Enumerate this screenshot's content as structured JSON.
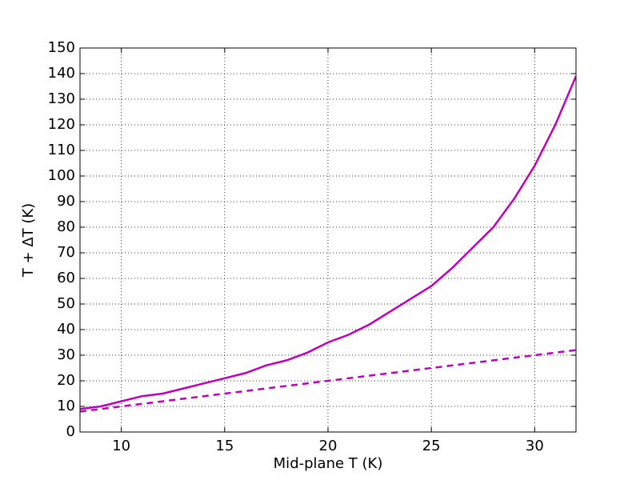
{
  "chart_data": {
    "type": "line",
    "x_label": "Mid-plane T (K)",
    "y_label": "T + ΔT (K)",
    "x": [
      8,
      9,
      10,
      11,
      12,
      13,
      14,
      15,
      16,
      17,
      18,
      19,
      20,
      21,
      22,
      23,
      24,
      25,
      26,
      27,
      28,
      29,
      30,
      31,
      32
    ],
    "series": [
      {
        "color": "#bf00bf",
        "style": "solid",
        "values": [
          9,
          10,
          12,
          14,
          15,
          17,
          19,
          21,
          23,
          26,
          28,
          31,
          35,
          38,
          42,
          47,
          52,
          57,
          64,
          72,
          80,
          91,
          104,
          120,
          139
        ]
      },
      {
        "color": "#bf00bf",
        "style": "dashed",
        "values": [
          8,
          9,
          10,
          11,
          12,
          13,
          14,
          15,
          16,
          17,
          18,
          19,
          20,
          21,
          22,
          23,
          24,
          25,
          26,
          27,
          28,
          29,
          30,
          31,
          32
        ]
      }
    ],
    "xlim": [
      8,
      32
    ],
    "xticks": [
      10,
      15,
      20,
      25,
      30
    ],
    "ylim": [
      0,
      150
    ],
    "yticks": [
      0,
      10,
      20,
      30,
      40,
      50,
      60,
      70,
      80,
      90,
      100,
      110,
      120,
      130,
      140,
      150
    ],
    "grid": true
  }
}
